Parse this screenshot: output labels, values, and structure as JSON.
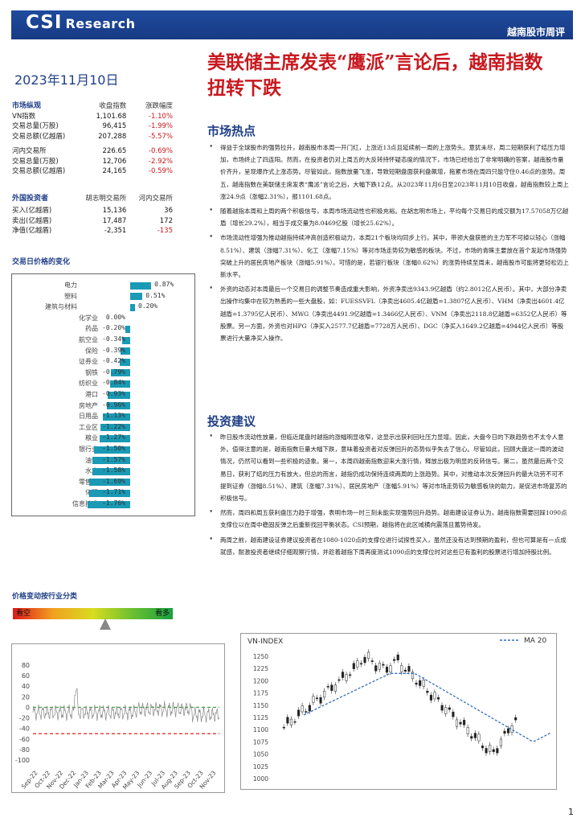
{
  "header": {
    "brand": "CSI",
    "brand_sub": "Research",
    "report_type": "越南股市周评"
  },
  "date": "2023年11月10日",
  "headline": "美联储主席发表“鹰派”言论后，越南指数扭转下跌",
  "market_overview": {
    "title": "市场纵观",
    "col_close": "收盘指数",
    "col_change": "涨跌幅度",
    "rows": [
      {
        "label": "VN指数",
        "value": "1,101.68",
        "change": "-1.10%"
      },
      {
        "label": "交易总量(万股)",
        "value": "96,415",
        "change": "-1.99%"
      },
      {
        "label": "交易总额(亿越盾)",
        "value": "207,288",
        "change": "-5.57%"
      },
      {
        "label": "河内交易所",
        "value": "226.65",
        "change": "-0.69%"
      },
      {
        "label": "交易总量(万股)",
        "value": "12,706",
        "change": "-2.92%"
      },
      {
        "label": "交易总额(亿越盾)",
        "value": "24,165",
        "change": "-0.59%"
      }
    ]
  },
  "foreign": {
    "title": "外国投资者",
    "col1": "胡志明交易所",
    "col2": "河内交易所",
    "rows": [
      {
        "label": "买入(亿越盾)",
        "hose": "15,136",
        "hnx": "36"
      },
      {
        "label": "卖出(亿越盾)",
        "hose": "17,487",
        "hnx": "172"
      },
      {
        "label": "净值(亿越盾)",
        "hose": "-2,351",
        "hnx": "-135"
      }
    ]
  },
  "sector_title": "交易日价格的变化",
  "sectors": [
    {
      "name": "电力",
      "value": 0.87,
      "label": "0.87%"
    },
    {
      "name": "塑料",
      "value": 0.51,
      "label": "0.51%"
    },
    {
      "name": "建筑与材料",
      "value": 0.2,
      "label": "0.20%"
    },
    {
      "name": "化学业",
      "value": 0.0,
      "label": "0.00%"
    },
    {
      "name": "药品",
      "value": -0.2,
      "label": "-0.20%"
    },
    {
      "name": "航空业",
      "value": -0.34,
      "label": "-0.34%"
    },
    {
      "name": "保险",
      "value": -0.39,
      "label": "-0.39%"
    },
    {
      "name": "证券业",
      "value": -0.42,
      "label": "-0.42%"
    },
    {
      "name": "钢铁",
      "value": -0.79,
      "label": "-0.79%"
    },
    {
      "name": "纺织业",
      "value": -0.84,
      "label": "-0.84%"
    },
    {
      "name": "港口",
      "value": -0.93,
      "label": "-0.93%"
    },
    {
      "name": "房地产",
      "value": -0.96,
      "label": "-0.96%"
    },
    {
      "name": "日用品",
      "value": -1.13,
      "label": "-1.13%"
    },
    {
      "name": "工业区",
      "value": -1.22,
      "label": "-1.22%"
    },
    {
      "name": "粮业",
      "value": -1.27,
      "label": "-1.27%"
    },
    {
      "name": "银行业",
      "value": -1.5,
      "label": "-1.50%"
    },
    {
      "name": "油气",
      "value": -1.57,
      "label": "-1.57%"
    },
    {
      "name": "水产",
      "value": -1.58,
      "label": "-1.58%"
    },
    {
      "name": "零售业",
      "value": -1.69,
      "label": "-1.69%"
    },
    {
      "name": "化肥",
      "value": -1.71,
      "label": "-1.71%"
    },
    {
      "name": "信息技术",
      "value": -1.76,
      "label": "-1.76%"
    }
  ],
  "sentiment": {
    "title": "价格变动按行业分类",
    "left": "看空",
    "right": "看多"
  },
  "market_hot": {
    "title": "市场热点",
    "bullets": [
      "得益于全球股市的强势拉升，越南股市本周一开门红，上涨近13点且延续前一周的上涨势头。意犹未尽，周二短期获利了结压力增加，市场终止了四连阳。然而，在投资者仍对上周五的大反转持怀疑态度的情况下，市场已经给出了非常明确的答案，越南股市量价齐升，呈现爆炸式上涨态势。尽管如此，指数放量飞涨，导致短期盘面获利盘飙增，拖累市场在周四只能守住0.46点的涨势。周五，越南指数在美联储主席发表“鹰派”言论之后，大幅下跌12点。从2023年11月6日至2023年11月10日收盘，越南指数较上周上涨24.9点（涨幅2.31%），报1101.68点。",
      "随着越指本周和上周的两个积极信号，本周市场流动性也积极充裕。在胡志明市场上，平均每个交易日的成交额为17.57058万亿越盾（增长29.2%），相当于成交量为8.0469亿股（增长25.62%）。",
      "市场流动性增强为推动越指持续冲高创造积极动力，本周21个板块均同步上行。其中，带领大盘获胜的主力军不可掉以轻心（涨幅8.51%）、建筑（涨幅7.31%）、化工（涨幅7.15%）等对市场走势较为敏感的板块。不过，市场的青睐主要放在首个发起市场强势突破上升的居民房地产板块（涨幅5.91%）。可惜的是，若银行板块（涨幅0.62%）的涨势持续至周末，越南股市可能将更轻松迈上新水平。",
      "外资的动态对本周最后一个交易日的调整节奏造成重大影响，外资净卖出9343.9亿越盾（约2.8012亿人民币）。其中，大部分净卖出操作均集中在较为熟悉的一些大盘股，如：FUESSVFL（净卖出4605.4亿越盾=1.3807亿人民币）、VHM（净卖出4601.4亿越盾=1.3795亿人民币）、MWG（净卖出4491.9亿越盾=1.3466亿人民币）、VNM（净卖出2118.8亿越盾=6352亿人民币）等股票。另一方面，外资也对HPG（净买入2577.7亿越盾=7728万人民币）、DGC（净买入1649.2亿越盾=4944亿人民币）等股票进行大量净买入操作。"
    ]
  },
  "advice": {
    "title": "投资建议",
    "bullets": [
      "昨日股市流动性放量，但临近尾盘时越指的涨幅明显收窄，这显示出获利回吐压力显增。因此，大盘今日的下跌趋势也不太令人意外。值得注意的是，越南指数巨量大幅下跌，意味着投资者对反弹回升的态势似乎失去了信心。尽管如此，回顾大盘这一周的波动情况，仍然可以看到一些积极的迹象。第一，本周四越南指数迎来大涨行情，释放出极为明显的反转信号。第二，虽然最后两个交易日，获利了结的压力有放大，但总的而言，越指仍成功保持连续两周的上涨趋势。其中，对推动本次反弹回升的最大功劳不可不提到证券（涨幅8.51%）、建筑（涨幅7.31%）、居民房地产（涨幅5.91%）等对市场走势较为敏感板块的助力，是促进市场复苏的积极信号。",
      "然而，周四和周五获利盘压力趋于增强，表明市场一时三刻未能实现强势回升趋势。越南建设证券认为，越南指数需要回踩1090点支撑位以在周中稳固反弹之后重新找回平衡状态。CSI预期，越指将在此区域横向震荡且蓄势待发。",
      "两周之前，越南建设证券建议投资者在1080-1020点的支撑位进行试探性买入，虽然还没有达到预期的盈利，但也可算是有一点成就感，耐激投资者继续仔细观察行情，并趁着越指下周再度测试1090点的支撑位时对这些已有盈利的股票进行增加持股比例。"
    ]
  },
  "breadth_chart": {
    "y_ticks": [
      "80",
      "60",
      "40",
      "20",
      "0",
      "-20",
      "-40",
      "-60",
      "-80",
      "-100"
    ],
    "x_ticks": [
      "Sep-22",
      "Oct-22",
      "Nov-22",
      "Dec-22",
      "Jan-23",
      "Feb-23",
      "Mar-23",
      "Apr-23",
      "May-23",
      "Jun-23",
      "Jul-23",
      "Aug-23",
      "Sep-23",
      "Oct-23",
      "Nov-23"
    ]
  },
  "vn_chart": {
    "title": "VN-INDEX",
    "legend": "MA 20",
    "y_ticks": [
      "1250",
      "1225",
      "1200",
      "1175",
      "1150",
      "1125",
      "1100",
      "1075",
      "1050",
      "1025",
      "1000"
    ]
  },
  "page_number": "1",
  "colors": {
    "brand_blue": "#1f4b9c",
    "red": "#c8181e",
    "bar": "#1a9ab5"
  }
}
